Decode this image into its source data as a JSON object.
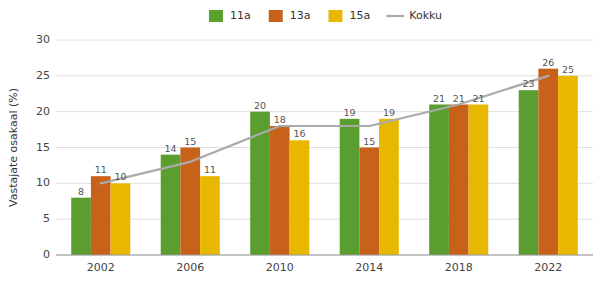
{
  "chart_data": {
    "type": "bar",
    "categories": [
      "2002",
      "2006",
      "2010",
      "2014",
      "2018",
      "2022"
    ],
    "series": [
      {
        "name": "11a",
        "type": "bar",
        "color": "#5a9e2f",
        "values": [
          8,
          14,
          20,
          19,
          21,
          23
        ]
      },
      {
        "name": "13a",
        "type": "bar",
        "color": "#c8611a",
        "values": [
          11,
          15,
          18,
          15,
          21,
          26
        ]
      },
      {
        "name": "15a",
        "type": "bar",
        "color": "#e8b800",
        "values": [
          10,
          11,
          16,
          19,
          21,
          25
        ]
      },
      {
        "name": "Kokku",
        "type": "line",
        "color": "#aaaaaa",
        "values": [
          10,
          13,
          18,
          18,
          21,
          25
        ]
      }
    ],
    "ylabel": "Vastajate osakaal (%)",
    "ylim": [
      0,
      30
    ],
    "yticks": [
      0,
      5,
      10,
      15,
      20,
      25,
      30
    ],
    "grid": true,
    "legend": "top",
    "data_labels": true
  }
}
